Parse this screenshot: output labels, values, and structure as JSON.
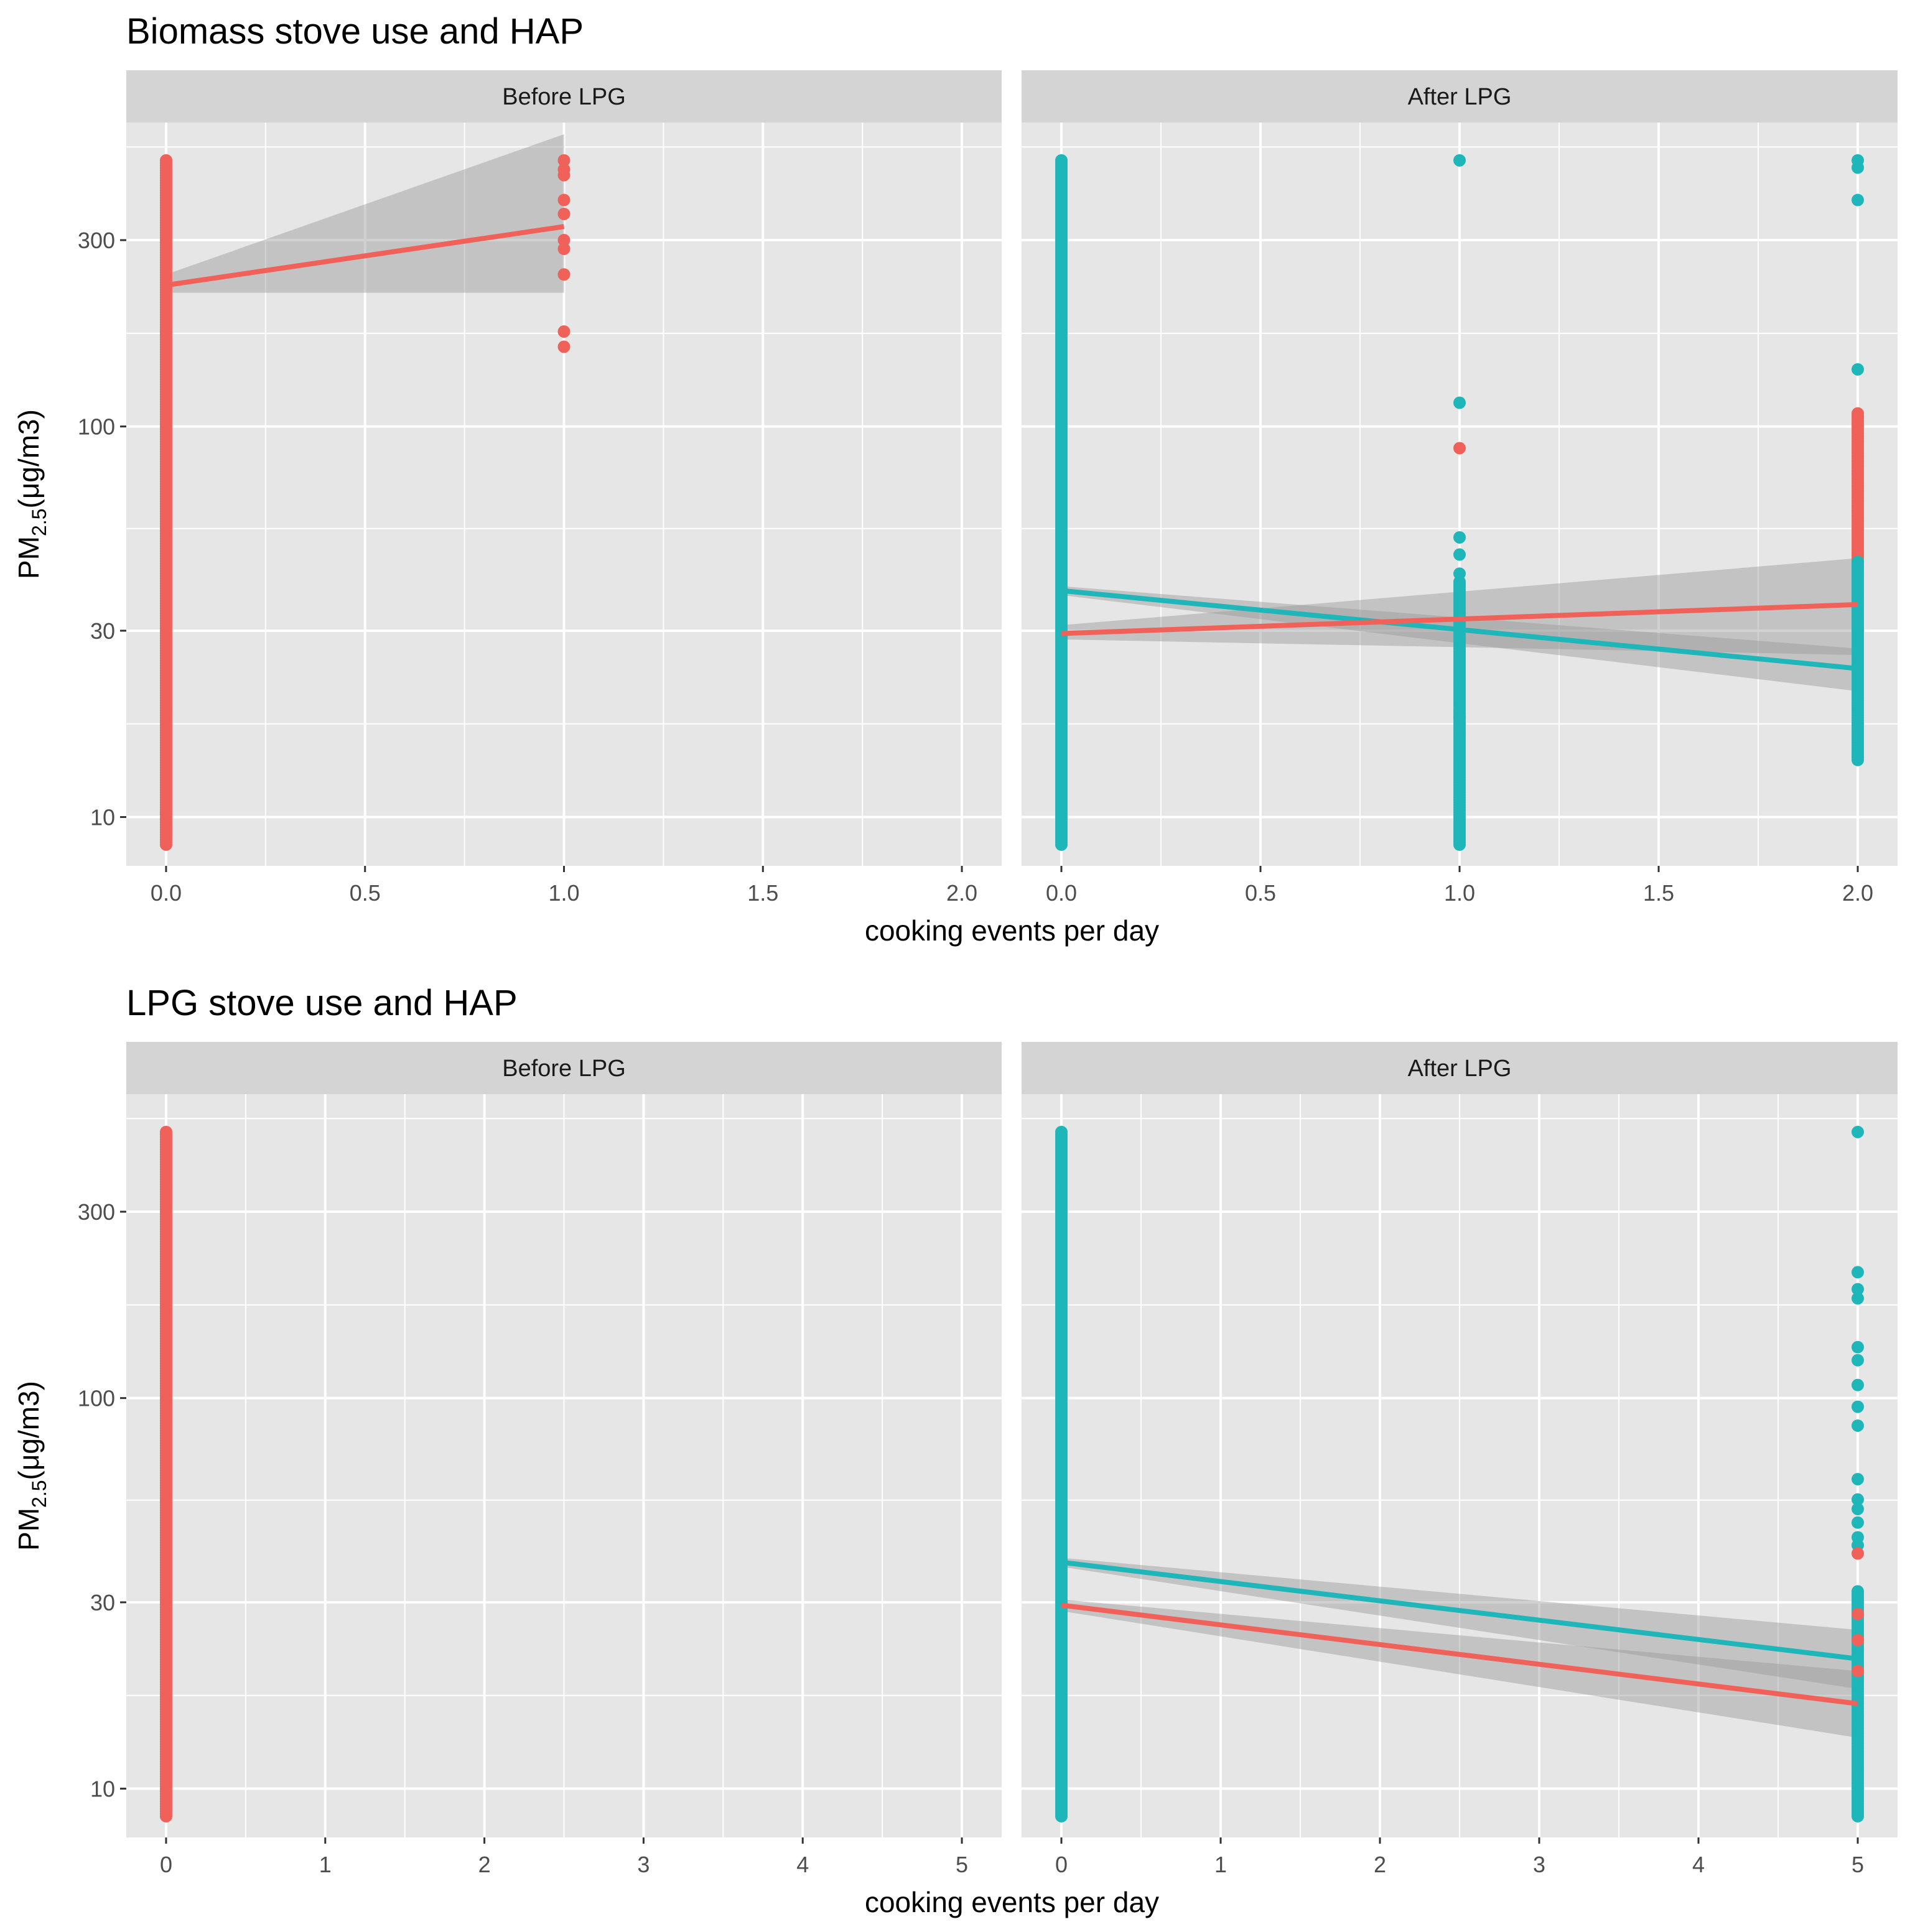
{
  "colors": {
    "red": "#F0615A",
    "teal": "#1FB6BA",
    "panel_bg": "#E6E6E6",
    "strip_bg": "#D4D4D4",
    "grid": "#FFFFFF",
    "ribbon": "#999999"
  },
  "chart_data": [
    {
      "type": "scatter",
      "title": "Biomass stove use and HAP",
      "xlabel": "cooking events per day",
      "ylabel_main": "PM",
      "ylabel_sub": "2.5",
      "ylabel_unit": "(μg/m3)",
      "y_scale": "log10",
      "ylim": [
        7.5,
        600
      ],
      "y_ticks": [
        10,
        30,
        100,
        300
      ],
      "y_tick_labels": [
        "10",
        "30",
        "100",
        "300"
      ],
      "xlim": [
        -0.1,
        2.1
      ],
      "x_ticks": [
        0,
        0.5,
        1,
        1.5,
        2
      ],
      "x_tick_labels": [
        "0.0",
        "0.5",
        "1.0",
        "1.5",
        "2.0"
      ],
      "panels": [
        {
          "strip": "Before LPG",
          "points": [
            {
              "series": "red",
              "x": 0,
              "y_range": [
                8.5,
                480
              ],
              "dense": true
            },
            {
              "series": "red",
              "x": 1,
              "values": [
                480,
                455,
                440,
                380,
                350,
                300,
                285,
                245,
                175,
                160
              ]
            }
          ],
          "fits": [
            {
              "series": "red",
              "x": [
                0,
                1
              ],
              "y": [
                230,
                325
              ],
              "ci_lower": [
                220,
                220
              ],
              "ci_upper": [
                245,
                560
              ]
            }
          ]
        },
        {
          "strip": "After LPG",
          "points": [
            {
              "series": "teal",
              "x": 0,
              "y_range": [
                8.5,
                480
              ],
              "dense": true
            },
            {
              "series": "red",
              "x": 1,
              "values": [
                88,
                18
              ]
            },
            {
              "series": "teal",
              "x": 1,
              "y_range": [
                8.5,
                40
              ],
              "dense": true
            },
            {
              "series": "teal",
              "x": 1,
              "values": [
                480,
                115,
                52,
                47,
                42
              ]
            },
            {
              "series": "red",
              "x": 2,
              "y_range": [
                30,
                108
              ],
              "dense": true
            },
            {
              "series": "teal",
              "x": 2,
              "y_range": [
                14,
                45
              ],
              "dense": true
            },
            {
              "series": "teal",
              "x": 2,
              "values": [
                480,
                460,
                380,
                140
              ]
            }
          ],
          "fits": [
            {
              "series": "teal",
              "x": [
                0,
                2
              ],
              "y": [
                38,
                24
              ],
              "ci_lower": [
                37,
                21
              ],
              "ci_upper": [
                39,
                27
              ]
            },
            {
              "series": "red",
              "x": [
                0,
                2
              ],
              "y": [
                29.5,
                35
              ],
              "ci_lower": [
                28.5,
                26
              ],
              "ci_upper": [
                31,
                46
              ]
            }
          ]
        }
      ]
    },
    {
      "type": "scatter",
      "title": "LPG stove use and HAP",
      "xlabel": "cooking events per day",
      "ylabel_main": "PM",
      "ylabel_sub": "2.5",
      "ylabel_unit": "(μg/m3)",
      "y_scale": "log10",
      "ylim": [
        7.5,
        600
      ],
      "y_ticks": [
        10,
        30,
        100,
        300
      ],
      "y_tick_labels": [
        "10",
        "30",
        "100",
        "300"
      ],
      "xlim": [
        -0.25,
        5.25
      ],
      "x_ticks": [
        0,
        1,
        2,
        3,
        4,
        5
      ],
      "x_tick_labels": [
        "0",
        "1",
        "2",
        "3",
        "4",
        "5"
      ],
      "panels": [
        {
          "strip": "Before LPG",
          "points": [
            {
              "series": "red",
              "x": 0,
              "y_range": [
                8.5,
                480
              ],
              "dense": true
            }
          ],
          "fits": []
        },
        {
          "strip": "After LPG",
          "points": [
            {
              "series": "teal",
              "x": 0,
              "y_range": [
                8.5,
                480
              ],
              "dense": true
            },
            {
              "series": "teal",
              "x": 5,
              "y_range": [
                8.5,
                32
              ],
              "dense": true
            },
            {
              "series": "teal",
              "x": 5,
              "values": [
                480,
                210,
                190,
                180,
                135,
                125,
                108,
                95,
                85,
                62,
                55,
                52,
                48,
                44,
                42
              ]
            },
            {
              "series": "red",
              "x": 5,
              "values": [
                40,
                28,
                24,
                20
              ]
            }
          ],
          "fits": [
            {
              "series": "teal",
              "x": [
                0,
                5
              ],
              "y": [
                38,
                21.5
              ],
              "ci_lower": [
                37,
                18
              ],
              "ci_upper": [
                39,
                25.5
              ]
            },
            {
              "series": "red",
              "x": [
                0,
                5
              ],
              "y": [
                29.5,
                16.5
              ],
              "ci_lower": [
                28.5,
                13.5
              ],
              "ci_upper": [
                30.5,
                20
              ]
            }
          ]
        }
      ]
    }
  ]
}
